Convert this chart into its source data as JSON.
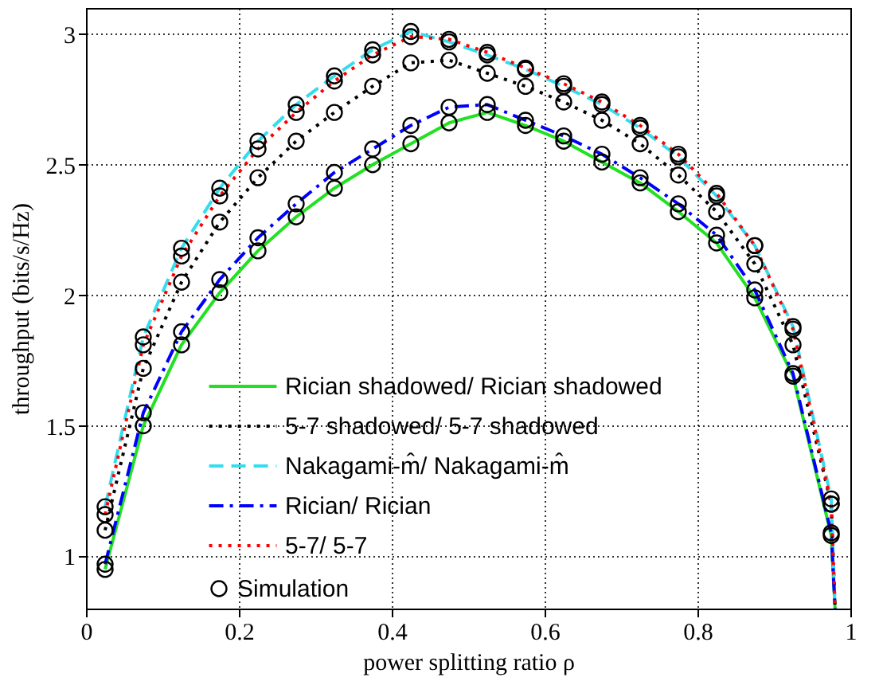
{
  "chart_data": {
    "type": "line",
    "xlabel": "power splitting ratio ρ",
    "ylabel": "throughput (bits/s/Hz)",
    "x": [
      0.025,
      0.075,
      0.125,
      0.175,
      0.225,
      0.275,
      0.325,
      0.375,
      0.425,
      0.475,
      0.525,
      0.575,
      0.625,
      0.675,
      0.725,
      0.775,
      0.825,
      0.875,
      0.925,
      0.975,
      0.98
    ],
    "xlim": [
      0,
      1
    ],
    "xticks": [
      0,
      0.2,
      0.4,
      0.6,
      0.8,
      1
    ],
    "ylim": [
      0.8,
      3.1
    ],
    "yticks": [
      1,
      1.5,
      2,
      2.5,
      3
    ],
    "grid": true,
    "legend": "bottom",
    "marker": "none",
    "series": [
      {
        "name": "Rician shadowed/ Rician shadowed",
        "color": "#22e022",
        "line_style": "solid",
        "values": [
          0.95,
          1.5,
          1.81,
          2.01,
          2.17,
          2.3,
          2.41,
          2.5,
          2.58,
          2.66,
          2.7,
          2.65,
          2.59,
          2.51,
          2.43,
          2.32,
          2.2,
          1.99,
          1.69,
          1.08,
          0.8
        ]
      },
      {
        "name": "5-7 shadowed/ 5-7 shadowed",
        "color": "#000000",
        "line_style": "dotted",
        "values": [
          1.1,
          1.72,
          2.05,
          2.28,
          2.45,
          2.59,
          2.7,
          2.8,
          2.89,
          2.9,
          2.85,
          2.8,
          2.74,
          2.67,
          2.58,
          2.46,
          2.32,
          2.12,
          1.81,
          1.2,
          0.8
        ]
      },
      {
        "name": "Nakagami-m̂/ Nakagami-m̂",
        "color": "#33ddee",
        "line_style": "dashed",
        "values": [
          1.19,
          1.84,
          2.18,
          2.41,
          2.59,
          2.73,
          2.84,
          2.94,
          3.01,
          2.97,
          2.92,
          2.865,
          2.8,
          2.73,
          2.64,
          2.53,
          2.38,
          2.19,
          1.88,
          1.22,
          0.8
        ]
      },
      {
        "name": "Rician/ Rician",
        "color": "#0000ff",
        "line_style": "dashdot",
        "values": [
          0.97,
          1.55,
          1.86,
          2.06,
          2.22,
          2.35,
          2.47,
          2.56,
          2.65,
          2.72,
          2.73,
          2.67,
          2.61,
          2.54,
          2.45,
          2.35,
          2.23,
          2.02,
          1.7,
          1.09,
          0.8
        ]
      },
      {
        "name": "5-7/ 5-7",
        "color": "#ff0000",
        "line_style": "dotted",
        "values": [
          1.16,
          1.81,
          2.15,
          2.38,
          2.56,
          2.7,
          2.82,
          2.92,
          2.99,
          2.98,
          2.93,
          2.87,
          2.81,
          2.74,
          2.65,
          2.54,
          2.39,
          2.19,
          1.87,
          1.2,
          0.8
        ]
      },
      {
        "name": "Simulation",
        "type": "scatter",
        "marker": "circle",
        "color": "#000000",
        "x": [
          0.025,
          0.075,
          0.125,
          0.175,
          0.225,
          0.275,
          0.325,
          0.375,
          0.425,
          0.475,
          0.525,
          0.575,
          0.625,
          0.675,
          0.725,
          0.775,
          0.825,
          0.875,
          0.925,
          0.975,
          0.025,
          0.075,
          0.125,
          0.175,
          0.225,
          0.275,
          0.325,
          0.375,
          0.425,
          0.475,
          0.525,
          0.575,
          0.625,
          0.675,
          0.725,
          0.775,
          0.825,
          0.875,
          0.925,
          0.975,
          0.025,
          0.075,
          0.125,
          0.175,
          0.225,
          0.275,
          0.325,
          0.375,
          0.425,
          0.475,
          0.525,
          0.575,
          0.625,
          0.675,
          0.725,
          0.775,
          0.825,
          0.875,
          0.925,
          0.975,
          0.025,
          0.075,
          0.125,
          0.175,
          0.225,
          0.275,
          0.325,
          0.375,
          0.425,
          0.475,
          0.525,
          0.575,
          0.625,
          0.675,
          0.725,
          0.775,
          0.825,
          0.875,
          0.925,
          0.975,
          0.025,
          0.075,
          0.125,
          0.175,
          0.225,
          0.275,
          0.325,
          0.375,
          0.425,
          0.475,
          0.525,
          0.575,
          0.625,
          0.675,
          0.725,
          0.775,
          0.825,
          0.875,
          0.925,
          0.975
        ],
        "values": [
          0.95,
          1.5,
          1.81,
          2.01,
          2.17,
          2.3,
          2.41,
          2.5,
          2.58,
          2.66,
          2.7,
          2.65,
          2.59,
          2.51,
          2.43,
          2.32,
          2.2,
          1.99,
          1.69,
          1.08,
          1.1,
          1.72,
          2.05,
          2.28,
          2.45,
          2.59,
          2.7,
          2.8,
          2.89,
          2.9,
          2.85,
          2.8,
          2.74,
          2.67,
          2.58,
          2.46,
          2.32,
          2.12,
          1.81,
          1.2,
          1.19,
          1.84,
          2.18,
          2.41,
          2.59,
          2.73,
          2.84,
          2.94,
          3.01,
          2.97,
          2.92,
          2.865,
          2.8,
          2.73,
          2.64,
          2.53,
          2.38,
          2.19,
          1.88,
          1.22,
          0.97,
          1.55,
          1.86,
          2.06,
          2.22,
          2.35,
          2.47,
          2.56,
          2.65,
          2.72,
          2.73,
          2.67,
          2.61,
          2.54,
          2.45,
          2.35,
          2.23,
          2.02,
          1.7,
          1.09,
          1.16,
          1.81,
          2.15,
          2.38,
          2.56,
          2.7,
          2.82,
          2.92,
          2.99,
          2.98,
          2.93,
          2.87,
          2.81,
          2.74,
          2.65,
          2.54,
          2.39,
          2.19,
          1.87,
          1.2
        ]
      }
    ]
  }
}
